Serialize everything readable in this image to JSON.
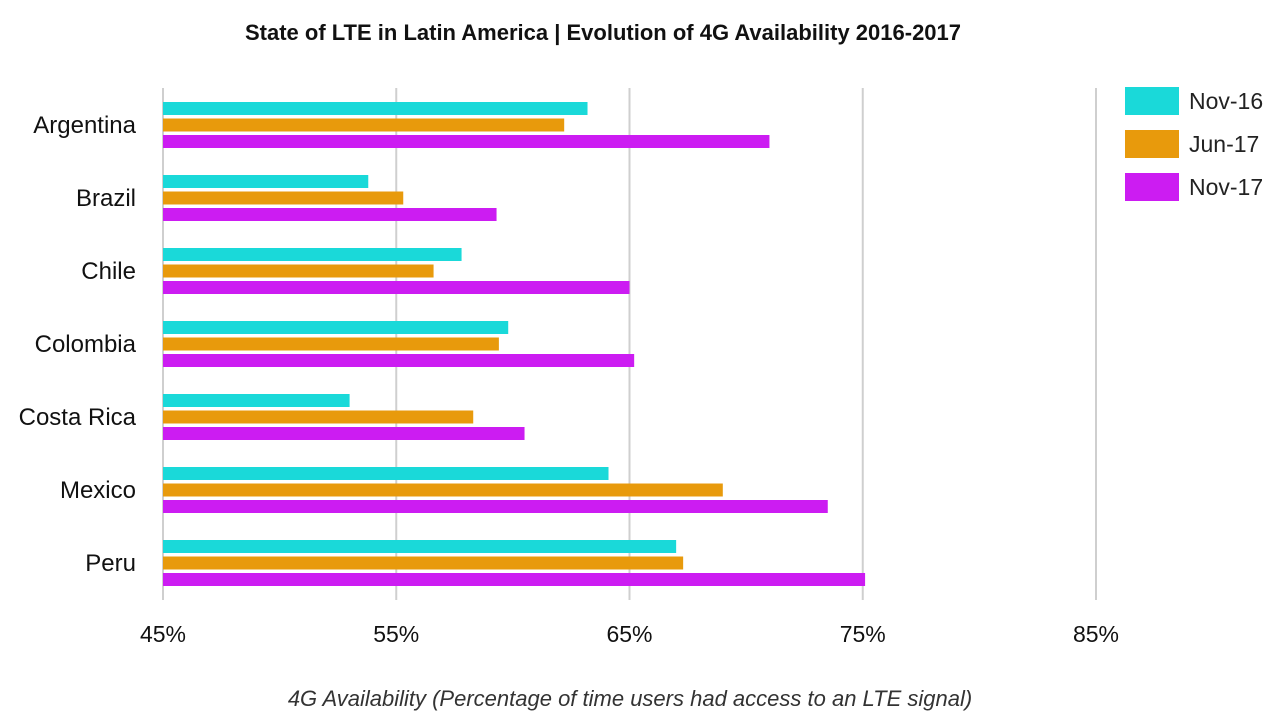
{
  "chart_data": {
    "type": "bar",
    "orientation": "horizontal",
    "title": "State of LTE in Latin America | Evolution of 4G Availability 2016-2017",
    "xlabel": "4G Availability (Percentage of time users had access to an LTE signal)",
    "ylabel": "",
    "xlim": [
      45,
      85
    ],
    "xticks": [
      45,
      55,
      65,
      75,
      85
    ],
    "tick_labels": [
      "45%",
      "55%",
      "65%",
      "75%",
      "85%"
    ],
    "grid": "vertical",
    "legend_position": "top-right",
    "categories": [
      "Argentina",
      "Brazil",
      "Chile",
      "Colombia",
      "Costa Rica",
      "Mexico",
      "Peru"
    ],
    "series": [
      {
        "name": "Nov-16",
        "color": "#1ad9d9",
        "values": [
          63.2,
          53.8,
          57.8,
          59.8,
          53.0,
          64.1,
          67.0
        ]
      },
      {
        "name": "Jun-17",
        "color": "#e89a0c",
        "values": [
          62.2,
          55.3,
          56.6,
          59.4,
          58.3,
          69.0,
          67.3
        ]
      },
      {
        "name": "Nov-17",
        "color": "#cc1cf2",
        "values": [
          71.0,
          59.3,
          65.0,
          65.2,
          60.5,
          73.5,
          75.1
        ]
      }
    ]
  }
}
